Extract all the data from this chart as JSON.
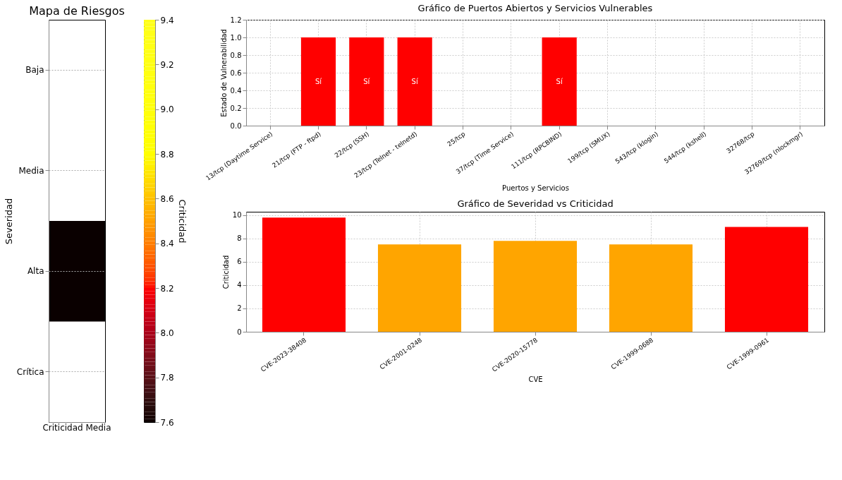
{
  "chart_data": [
    {
      "type": "heatmap",
      "title": "Mapa de Riesgos",
      "ylabel": "Severidad",
      "clabel": "Criticidad",
      "categories": [
        "Criticidad Media"
      ],
      "y_categories": [
        "Baja",
        "Media",
        "Alta",
        "Crítica"
      ],
      "cells": [
        [
          null
        ],
        [
          null
        ],
        [
          7.6
        ],
        [
          null
        ]
      ],
      "clim": [
        7.6,
        9.4
      ],
      "cticks": [
        7.6,
        7.8,
        {
          "value": 8.0,
          "label": "8.0"
        },
        8.2,
        8.4,
        8.6,
        8.8,
        {
          "value": 9.0,
          "label": "9.0"
        },
        9.2,
        9.4
      ],
      "grid": "y"
    },
    {
      "type": "bar",
      "title": "Gráfico de Puertos Abiertos y Servicios Vulnerables",
      "xlabel": "Puertos y Servicios",
      "ylabel": "Estado de Vulnerabilidad",
      "categories": [
        "13/tcp (Daytime Service)",
        "21/tcp (FTP - ftpd)",
        "22/tcp (SSH)",
        "23/tcp (Telnet - telnetd)",
        "25/tcp",
        "37/tcp (Time Service)",
        "111/tcp (RPCBIND)",
        "199/tcp (SMUX)",
        "543/tcp (klogin)",
        "544/tcp (kshell)",
        "32768/tcp",
        "32769/tcp (nlockmgr)"
      ],
      "values": [
        0,
        1,
        1,
        1,
        0,
        0,
        1,
        0,
        0,
        0,
        0,
        0
      ],
      "value_labels": [
        null,
        "Sí",
        "Sí",
        "Sí",
        null,
        null,
        "Sí",
        null,
        null,
        null,
        null,
        null
      ],
      "color": "#ff0000",
      "ylim": [
        0,
        1.2
      ],
      "yticks": [
        {
          "value": 0,
          "label": "0.0"
        },
        0.2,
        0.4,
        0.6,
        0.8,
        {
          "value": 1,
          "label": "1.0"
        },
        1.2
      ],
      "grid": true
    },
    {
      "type": "bar",
      "title": "Gráfico de Severidad vs Criticidad",
      "xlabel": "CVE",
      "ylabel": "Criticidad",
      "categories": [
        "CVE-2023-38408",
        "CVE-2001-0248",
        "CVE-2020-15778",
        "CVE-1999-0688",
        "CVE-1999-0961"
      ],
      "values": [
        9.8,
        7.5,
        7.8,
        7.5,
        9.0
      ],
      "colors": [
        "#ff0000",
        "#ffa500",
        "#ffa500",
        "#ffa500",
        "#ff0000"
      ],
      "ylim": [
        0,
        10.3
      ],
      "yticks": [
        0,
        2,
        4,
        6,
        8,
        10
      ],
      "grid": true
    }
  ]
}
